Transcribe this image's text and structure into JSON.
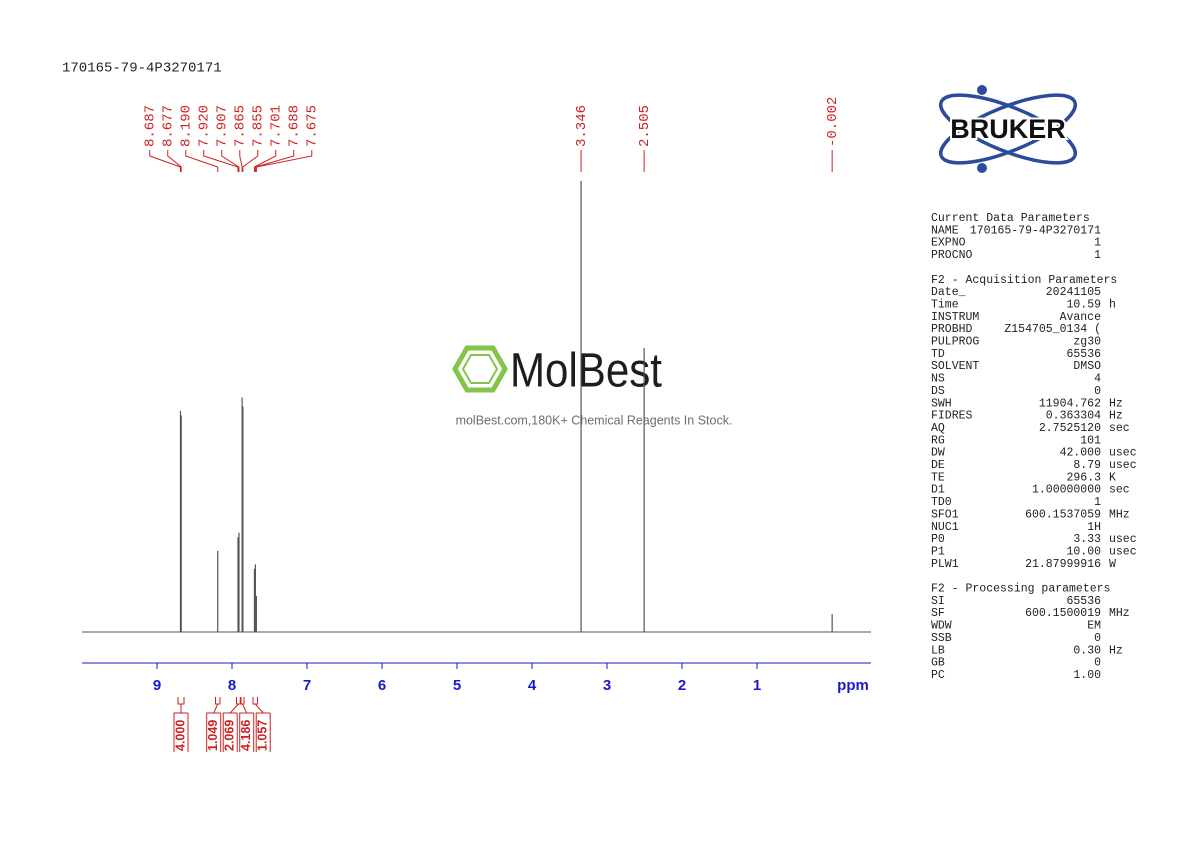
{
  "chart_data": {
    "type": "spectrum",
    "title": "170165-79-4P3270171",
    "xlabel": "ppm",
    "xlim": [
      10,
      -0.52
    ],
    "xticks": [
      9,
      8,
      7,
      6,
      5,
      4,
      3,
      2,
      1
    ],
    "ylim": [
      0,
      100
    ],
    "color": "#555555",
    "label_color": "#cc2222",
    "tick_color": "#1a1acc",
    "x": [
      8.687,
      8.677,
      8.19,
      7.92,
      7.907,
      7.865,
      7.855,
      7.701,
      7.688,
      7.675,
      3.346,
      2.505,
      -0.002
    ],
    "x_labels": [
      "8.687",
      "8.677",
      "8.190",
      "7.920",
      "7.907",
      "7.865",
      "7.855",
      "7.701",
      "7.688",
      "7.675",
      "3.346",
      "2.505",
      "-0.002"
    ],
    "values": [
      49,
      48,
      18,
      21,
      22,
      52,
      50,
      14,
      15,
      8,
      100,
      63,
      4
    ],
    "integrals": {
      "values": [
        4,
        1.049,
        2.069,
        4.186,
        1.057
      ],
      "value_labels": [
        "4.000",
        "1.049",
        "2.069",
        "4.186",
        "1.057"
      ],
      "ranges": [
        [
          8.72,
          8.64
        ],
        [
          8.22,
          8.16
        ],
        [
          7.94,
          7.89
        ],
        [
          7.88,
          7.84
        ],
        [
          7.72,
          7.66
        ]
      ]
    }
  },
  "logo": {
    "text": "BRUKER"
  },
  "watermark": {
    "brand": "MolBest",
    "tagline": "molBest.com,180K+ Chemical Reagents In Stock."
  },
  "parameters": [
    {
      "title": "Current Data Parameters",
      "rows": [
        [
          "NAME",
          "170165-79-4P3270171"
        ],
        [
          "EXPNO",
          "1"
        ],
        [
          "PROCNO",
          "1"
        ]
      ]
    },
    {
      "title": "F2 - Acquisition Parameters",
      "rows": [
        [
          "Date_",
          "20241105"
        ],
        [
          "Time",
          "10.59",
          "h"
        ],
        [
          "INSTRUM",
          "Avance"
        ],
        [
          "PROBHD",
          "Z154705_0134 ("
        ],
        [
          "PULPROG",
          "zg30"
        ],
        [
          "TD",
          "65536"
        ],
        [
          "SOLVENT",
          "DMSO"
        ],
        [
          "NS",
          "4"
        ],
        [
          "DS",
          "0"
        ],
        [
          "SWH",
          "11904.762",
          "Hz"
        ],
        [
          "FIDRES",
          "0.363304",
          "Hz"
        ],
        [
          "AQ",
          "2.7525120",
          "sec"
        ],
        [
          "RG",
          "101"
        ],
        [
          "DW",
          "42.000",
          "usec"
        ],
        [
          "DE",
          "8.79",
          "usec"
        ],
        [
          "TE",
          "296.3",
          "K"
        ],
        [
          "D1",
          "1.00000000",
          "sec"
        ],
        [
          "TD0",
          "1"
        ],
        [
          "SFO1",
          "600.1537059",
          "MHz"
        ],
        [
          "NUC1",
          "1H"
        ],
        [
          "P0",
          "3.33",
          "usec"
        ],
        [
          "P1",
          "10.00",
          "usec"
        ],
        [
          "PLW1",
          "21.87999916",
          "W"
        ]
      ]
    },
    {
      "title": "F2 - Processing parameters",
      "rows": [
        [
          "SI",
          "65536"
        ],
        [
          "SF",
          "600.1500019",
          "MHz"
        ],
        [
          "WDW",
          "EM"
        ],
        [
          "SSB",
          "0"
        ],
        [
          "LB",
          "0.30",
          "Hz"
        ],
        [
          "GB",
          "0"
        ],
        [
          "PC",
          "1.00"
        ]
      ]
    }
  ]
}
